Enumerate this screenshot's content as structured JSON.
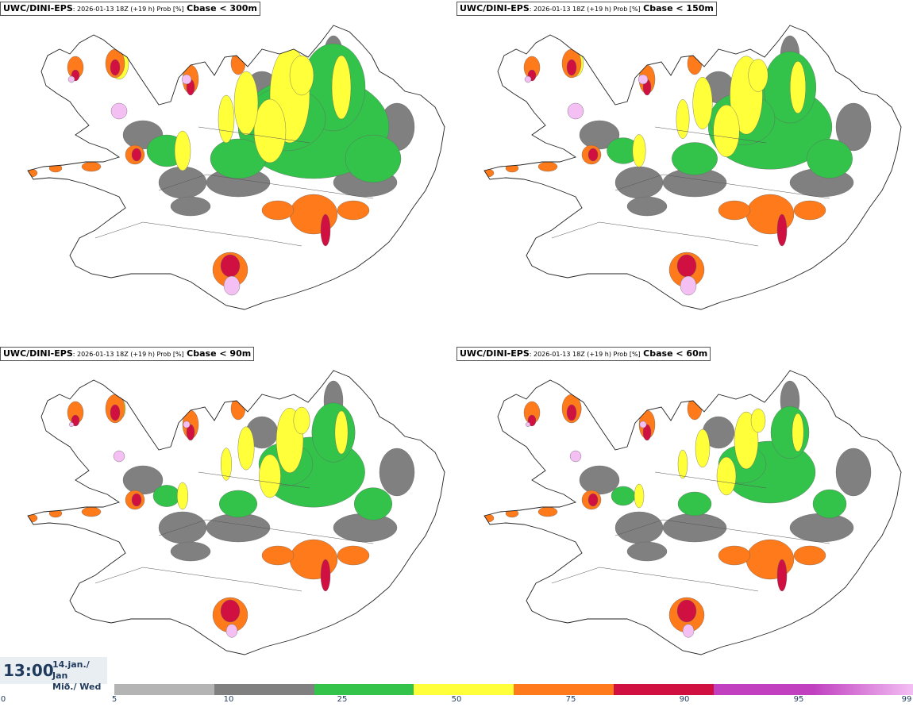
{
  "panels": [
    {
      "model": "UWC/DINI-EPS",
      "run": ": 2026-01-13 18Z (+19 h) Prob [%]",
      "threshold": "Cbase < 300m",
      "intensity": 1.0
    },
    {
      "model": "UWC/DINI-EPS",
      "run": ": 2026-01-13 18Z (+19 h) Prob [%]",
      "threshold": "Cbase < 150m",
      "intensity": 0.82
    },
    {
      "model": "UWC/DINI-EPS",
      "run": ": 2026-01-13 18Z (+19 h) Prob [%]",
      "threshold": "Cbase < 90m",
      "intensity": 0.68
    },
    {
      "model": "UWC/DINI-EPS",
      "run": ": 2026-01-13 18Z (+19 h) Prob [%]",
      "threshold": "Cbase < 60m",
      "intensity": 0.6
    }
  ],
  "time": {
    "clock": "13:00",
    "date_line1": "14.jan./ Jan",
    "date_line2": "Mið./ Wed"
  },
  "legend": {
    "ticks": [
      "0",
      "5",
      "10",
      "25",
      "50",
      "75",
      "90",
      "95",
      "99"
    ],
    "colors": [
      "#b4b4b4",
      "#808080",
      "#33c24a",
      "#ffff3a",
      "#ff7a1a",
      "#d01040",
      "#c040c0",
      "#f4c0f4"
    ]
  }
}
